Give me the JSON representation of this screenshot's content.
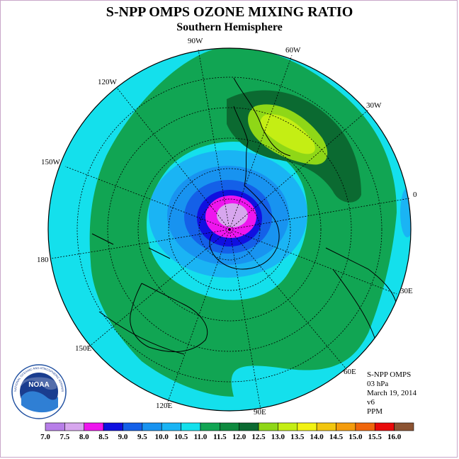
{
  "title": "S-NPP OMPS OZONE MIXING RATIO",
  "subtitle": "Southern Hemisphere",
  "longitude_labels": [
    "90W",
    "60W",
    "120W",
    "30W",
    "150W",
    "0",
    "180",
    "30E",
    "150E",
    "60E",
    "120E",
    "90E"
  ],
  "info": {
    "instrument": "S-NPP OMPS",
    "level": "03 hPa",
    "date": "March 19, 2014",
    "version": "v6",
    "units": "PPM"
  },
  "logo": {
    "text": "NOAA",
    "ring_text": "NATIONAL OCEANIC AND ATMOSPHERIC ADMINISTRATION · U.S. DEPARTMENT OF COMMERCE"
  },
  "colorbar": {
    "ticks": [
      "7.0",
      "7.5",
      "8.0",
      "8.5",
      "9.0",
      "9.5",
      "10.0",
      "10.5",
      "11.0",
      "11.5",
      "12.0",
      "12.5",
      "13.0",
      "13.5",
      "14.0",
      "14.5",
      "15.0",
      "15.5",
      "16.0"
    ],
    "colors": [
      "#b77ee8",
      "#d7a6ee",
      "#ee15ee",
      "#1010e0",
      "#1460e8",
      "#1893f0",
      "#1ab4f4",
      "#14e0ec",
      "#11a553",
      "#0e8a3e",
      "#0b6a31",
      "#8fd717",
      "#c4ee14",
      "#f2f212",
      "#f2c60f",
      "#f49c0d",
      "#f0660c",
      "#e80a0a",
      "#8c5332"
    ]
  }
}
